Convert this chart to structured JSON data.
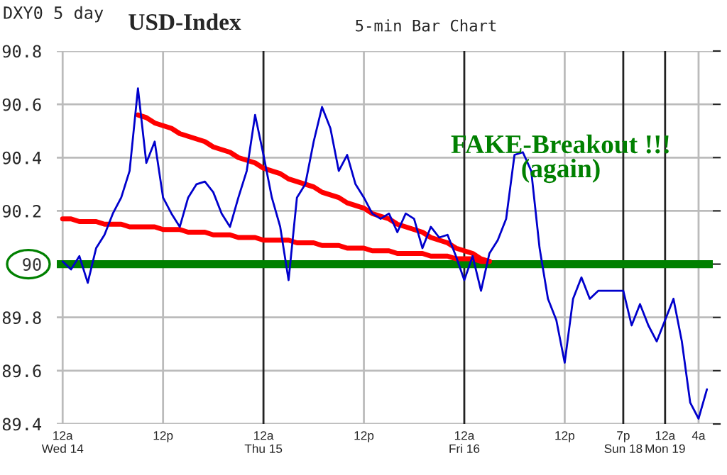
{
  "chart_data": {
    "type": "line",
    "title": "USD-Index",
    "subtitle": "5-min Bar Chart",
    "annotations": [
      "DXY0 5 day",
      "FAKE-Breakout !!!\n(again)"
    ],
    "categories": [
      "12a\nWed 14",
      null,
      null,
      null,
      null,
      null,
      null,
      null,
      null,
      null,
      null,
      null,
      "12p",
      null,
      null,
      null,
      null,
      null,
      null,
      null,
      null,
      null,
      null,
      null,
      "12a\nThu 15",
      null,
      null,
      null,
      null,
      null,
      null,
      null,
      null,
      null,
      null,
      null,
      "12p",
      null,
      null,
      null,
      null,
      null,
      null,
      null,
      null,
      null,
      null,
      null,
      "12a\nFri 16",
      null,
      null,
      null,
      null,
      null,
      null,
      null,
      null,
      null,
      null,
      null,
      "12p",
      null,
      null,
      null,
      null,
      null,
      null,
      "7p\nSun 18",
      null,
      null,
      null,
      null,
      "12a\nMon 19",
      null,
      null,
      null,
      "4a",
      null
    ],
    "ylim": [
      89.4,
      90.8
    ],
    "yticks": [
      89.4,
      89.6,
      89.8,
      90,
      90.2,
      90.4,
      90.6,
      90.8
    ],
    "grid": true,
    "marker": "none",
    "line_style": "solid",
    "ref_lines": [
      {
        "axis": "y",
        "value": 90,
        "color": "#008000"
      }
    ],
    "series": [
      {
        "color": "#0000cc",
        "values": [
          90.01,
          89.98,
          90.03,
          89.93,
          90.06,
          90.11,
          90.19,
          90.25,
          90.35,
          90.66,
          90.38,
          90.46,
          90.25,
          90.19,
          90.14,
          90.25,
          90.3,
          90.31,
          90.27,
          90.19,
          90.14,
          90.25,
          90.35,
          90.56,
          90.41,
          90.25,
          90.14,
          89.94,
          90.25,
          90.3,
          90.46,
          90.59,
          90.51,
          90.35,
          90.41,
          90.3,
          90.25,
          90.19,
          90.17,
          90.19,
          90.12,
          90.19,
          90.17,
          90.06,
          90.14,
          90.1,
          90.11,
          90.03,
          89.94,
          90.03,
          89.9,
          90.04,
          90.09,
          90.17,
          90.41,
          90.42,
          90.35,
          90.06,
          89.87,
          89.79,
          89.63,
          89.87,
          89.95,
          89.87,
          89.9,
          89.9,
          89.9,
          89.9,
          89.77,
          89.85,
          89.77,
          89.71,
          89.79,
          89.87,
          89.71,
          89.48,
          89.42,
          89.53
        ]
      },
      {
        "color": "#ff0000",
        "values": [
          90.17,
          90.17,
          90.16,
          90.16,
          90.16,
          90.15,
          90.15,
          90.15,
          90.14,
          90.14,
          90.14,
          90.14,
          90.13,
          90.13,
          90.13,
          90.12,
          90.12,
          90.12,
          90.11,
          90.11,
          90.11,
          90.1,
          90.1,
          90.1,
          90.09,
          90.09,
          90.09,
          90.09,
          90.08,
          90.08,
          90.08,
          90.07,
          90.07,
          90.07,
          90.06,
          90.06,
          90.06,
          90.05,
          90.05,
          90.05,
          90.04,
          90.04,
          90.04,
          90.04,
          90.03,
          90.03,
          90.03,
          90.02,
          90.02,
          90.02,
          90.01,
          90.01,
          null,
          null,
          null,
          null,
          null,
          null,
          null,
          null,
          null,
          null,
          null,
          null,
          null,
          null,
          null,
          null,
          null,
          null,
          null,
          null,
          null,
          null,
          null,
          null,
          null,
          null
        ]
      },
      {
        "color": "#ff0000",
        "values": [
          null,
          null,
          null,
          null,
          null,
          null,
          null,
          null,
          null,
          90.56,
          90.55,
          90.53,
          90.52,
          90.51,
          90.49,
          90.48,
          90.47,
          90.46,
          90.44,
          90.43,
          90.42,
          90.4,
          90.39,
          90.38,
          90.36,
          90.35,
          90.34,
          90.32,
          90.31,
          90.3,
          90.29,
          90.27,
          90.26,
          90.25,
          90.23,
          90.22,
          90.21,
          90.19,
          90.18,
          90.17,
          90.15,
          90.14,
          90.13,
          90.12,
          90.1,
          90.09,
          90.08,
          90.06,
          90.05,
          90.04,
          90.02,
          90.01,
          null,
          null,
          null,
          null,
          null,
          null,
          null,
          null,
          null,
          null,
          null,
          null,
          null,
          null,
          null,
          null,
          null,
          null,
          null,
          null,
          null,
          null,
          null,
          null,
          null,
          null
        ]
      }
    ]
  }
}
